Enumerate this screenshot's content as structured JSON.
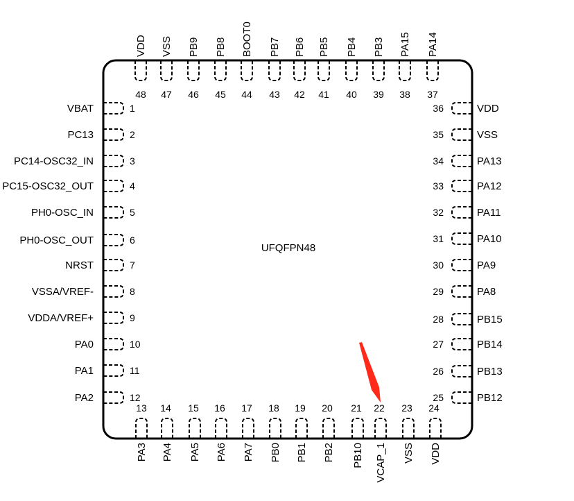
{
  "package": {
    "name": "UFQFPN48",
    "arrow_color": "#ff2a1a",
    "arrow_target_pin": 22
  },
  "pins": {
    "left": [
      {
        "num": "1",
        "name": "VBAT"
      },
      {
        "num": "2",
        "name": "PC13"
      },
      {
        "num": "3",
        "name": "PC14-OSC32_IN"
      },
      {
        "num": "4",
        "name": "PC15-OSC32_OUT"
      },
      {
        "num": "5",
        "name": "PH0-OSC_IN"
      },
      {
        "num": "6",
        "name": "PH0-OSC_OUT"
      },
      {
        "num": "7",
        "name": "NRST"
      },
      {
        "num": "8",
        "name": "VSSA/VREF-"
      },
      {
        "num": "9",
        "name": "VDDA/VREF+"
      },
      {
        "num": "10",
        "name": "PA0"
      },
      {
        "num": "11",
        "name": "PA1"
      },
      {
        "num": "12",
        "name": "PA2"
      }
    ],
    "bottom": [
      {
        "num": "13",
        "name": "PA3"
      },
      {
        "num": "14",
        "name": "PA4"
      },
      {
        "num": "15",
        "name": "PA5"
      },
      {
        "num": "16",
        "name": "PA6"
      },
      {
        "num": "17",
        "name": "PA7"
      },
      {
        "num": "18",
        "name": "PB0"
      },
      {
        "num": "19",
        "name": "PB1"
      },
      {
        "num": "20",
        "name": "PB2"
      },
      {
        "num": "21",
        "name": "PB10"
      },
      {
        "num": "22",
        "name": "VCAP_1"
      },
      {
        "num": "23",
        "name": "VSS"
      },
      {
        "num": "24",
        "name": "VDD"
      }
    ],
    "right": [
      {
        "num": "36",
        "name": "VDD"
      },
      {
        "num": "35",
        "name": "VSS"
      },
      {
        "num": "34",
        "name": "PA13"
      },
      {
        "num": "33",
        "name": "PA12"
      },
      {
        "num": "32",
        "name": "PA11"
      },
      {
        "num": "31",
        "name": "PA10"
      },
      {
        "num": "30",
        "name": "PA9"
      },
      {
        "num": "29",
        "name": "PA8"
      },
      {
        "num": "28",
        "name": "PB15"
      },
      {
        "num": "27",
        "name": "PB14"
      },
      {
        "num": "26",
        "name": "PB13"
      },
      {
        "num": "25",
        "name": "PB12"
      }
    ],
    "top": [
      {
        "num": "48",
        "name": "VDD"
      },
      {
        "num": "47",
        "name": "VSS"
      },
      {
        "num": "46",
        "name": "PB9"
      },
      {
        "num": "45",
        "name": "PB8"
      },
      {
        "num": "44",
        "name": "BOOT0"
      },
      {
        "num": "43",
        "name": "PB7"
      },
      {
        "num": "42",
        "name": "PB6"
      },
      {
        "num": "41",
        "name": "PB5"
      },
      {
        "num": "40",
        "name": "PB4"
      },
      {
        "num": "39",
        "name": "PB3"
      },
      {
        "num": "38",
        "name": "PA15"
      },
      {
        "num": "37",
        "name": "PA14"
      }
    ]
  }
}
